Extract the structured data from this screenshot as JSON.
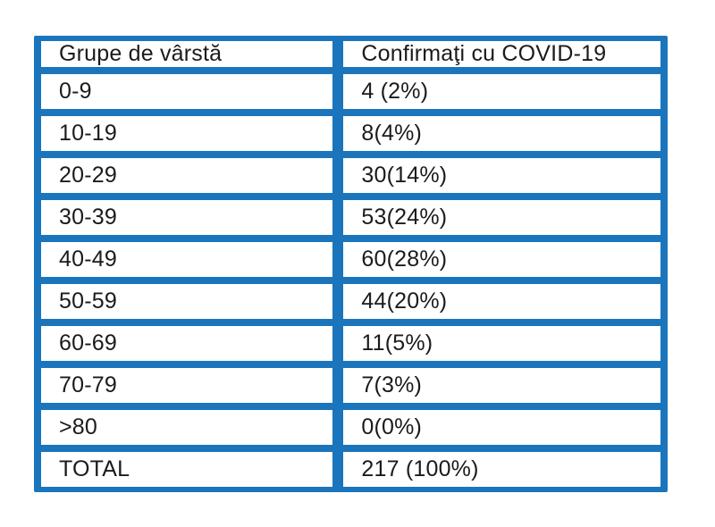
{
  "page": {
    "background": "#ffffff",
    "border_color": "#1b75bc",
    "text_color": "#1b1b1b"
  },
  "table": {
    "headers": [
      "Grupe de vârstă",
      "Confirmaţi cu COVID-19"
    ],
    "rows": [
      [
        "0-9",
        "4 (2%)"
      ],
      [
        "10-19",
        "8(4%)"
      ],
      [
        "20-29",
        "30(14%)"
      ],
      [
        "30-39",
        "53(24%)"
      ],
      [
        "40-49",
        "60(28%)"
      ],
      [
        "50-59",
        "44(20%)"
      ],
      [
        "60-69",
        "11(5%)"
      ],
      [
        "70-79",
        "7(3%)"
      ],
      [
        ">80",
        "0(0%)"
      ],
      [
        "TOTAL",
        "217 (100%)"
      ]
    ]
  },
  "chart_data": {
    "type": "table",
    "title": "",
    "columns": [
      "Grupe de vârstă",
      "Confirmaţi cu COVID-19"
    ],
    "categories": [
      "0-9",
      "10-19",
      "20-29",
      "30-39",
      "40-49",
      "50-59",
      "60-69",
      "70-79",
      ">80"
    ],
    "values": [
      4,
      8,
      30,
      53,
      60,
      44,
      11,
      7,
      0
    ],
    "percentages": [
      2,
      4,
      14,
      24,
      28,
      20,
      5,
      3,
      0
    ],
    "total": 217,
    "total_label": "TOTAL",
    "total_display": "217 (100%)",
    "cell_display": [
      "4 (2%)",
      "8(4%)",
      "30(14%)",
      "53(24%)",
      "60(28%)",
      "44(20%)",
      "11(5%)",
      "7(3%)",
      "0(0%)"
    ]
  }
}
